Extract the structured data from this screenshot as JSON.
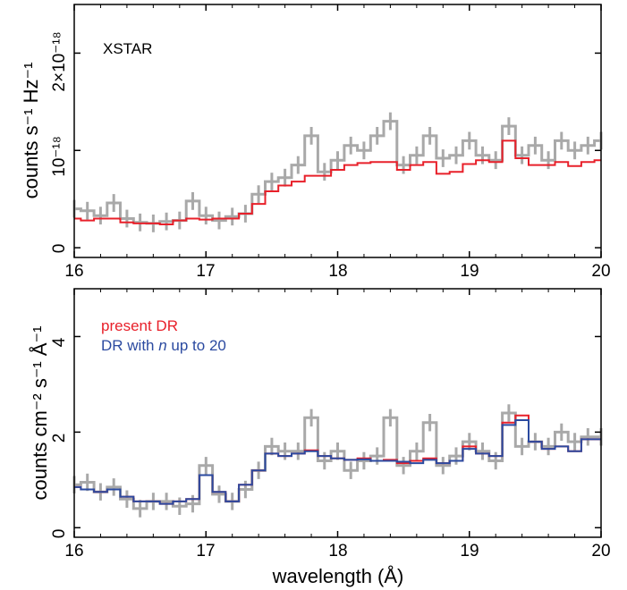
{
  "chart_data": [
    {
      "type": "line",
      "annotation": "XSTAR",
      "xlabel": "",
      "ylabel": "counts s⁻¹ Hz⁻¹",
      "xlim": [
        16,
        20
      ],
      "ylim": [
        -0.1,
        2.5
      ],
      "y_unit_multiplier": "1e-18",
      "x_ticks": [
        16,
        17,
        18,
        19,
        20
      ],
      "x_tick_labels": [
        "16",
        "17",
        "18",
        "19",
        "20"
      ],
      "y_ticks": [
        0,
        1,
        2
      ],
      "y_tick_labels": [
        "0",
        "10⁻¹⁸",
        "2×10⁻¹⁸"
      ],
      "series": [
        {
          "color": "#a9a9a9",
          "x": [
            16.0,
            16.1,
            16.2,
            16.3,
            16.4,
            16.5,
            16.6,
            16.7,
            16.8,
            16.9,
            17.0,
            17.1,
            17.2,
            17.3,
            17.4,
            17.5,
            17.6,
            17.7,
            17.8,
            17.9,
            18.0,
            18.1,
            18.2,
            18.3,
            18.4,
            18.5,
            18.6,
            18.7,
            18.8,
            18.9,
            19.0,
            19.1,
            19.2,
            19.3,
            19.4,
            19.5,
            19.6,
            19.7,
            19.8,
            19.9,
            20.0
          ],
          "y": [
            0.4,
            0.38,
            0.33,
            0.46,
            0.3,
            0.26,
            0.25,
            0.27,
            0.28,
            0.48,
            0.33,
            0.28,
            0.32,
            0.35,
            0.55,
            0.68,
            0.72,
            0.85,
            1.15,
            0.78,
            0.9,
            1.05,
            1.0,
            1.15,
            1.3,
            0.85,
            0.95,
            1.15,
            0.92,
            0.95,
            1.1,
            0.95,
            0.9,
            1.25,
            0.95,
            1.05,
            0.9,
            1.1,
            1.0,
            1.05,
            1.1
          ]
        },
        {
          "color": "#e8202a",
          "x": [
            16.0,
            16.1,
            16.2,
            16.3,
            16.4,
            16.5,
            16.6,
            16.7,
            16.8,
            16.9,
            17.0,
            17.1,
            17.2,
            17.3,
            17.4,
            17.5,
            17.6,
            17.7,
            17.8,
            17.9,
            18.0,
            18.1,
            18.2,
            18.3,
            18.4,
            18.5,
            18.6,
            18.7,
            18.8,
            18.9,
            19.0,
            19.1,
            19.2,
            19.3,
            19.4,
            19.5,
            19.6,
            19.7,
            19.8,
            19.9,
            20.0
          ],
          "y": [
            0.3,
            0.28,
            0.3,
            0.3,
            0.26,
            0.25,
            0.25,
            0.24,
            0.28,
            0.3,
            0.29,
            0.3,
            0.3,
            0.35,
            0.45,
            0.58,
            0.64,
            0.68,
            0.74,
            0.74,
            0.8,
            0.85,
            0.87,
            0.88,
            0.88,
            0.8,
            0.85,
            0.88,
            0.76,
            0.78,
            0.86,
            0.9,
            0.88,
            1.1,
            0.92,
            0.85,
            0.85,
            0.88,
            0.84,
            0.88,
            0.9
          ]
        }
      ]
    },
    {
      "type": "line",
      "xlabel": "wavelength (Å)",
      "ylabel": "counts cm⁻² s⁻¹ Å⁻¹",
      "xlim": [
        16,
        20
      ],
      "ylim": [
        -0.2,
        5.0
      ],
      "x_ticks": [
        16,
        17,
        18,
        19,
        20
      ],
      "x_tick_labels": [
        "16",
        "17",
        "18",
        "19",
        "20"
      ],
      "y_ticks": [
        0,
        2,
        4
      ],
      "y_tick_labels": [
        "0",
        "2",
        "4"
      ],
      "legend": {
        "placement": "top-left",
        "entries": [
          {
            "label": "present DR",
            "color": "#e8202a"
          },
          {
            "label_before": "DR with ",
            "label_italic": "n",
            "label_after": " up to 20",
            "color": "#2b4aa0"
          }
        ]
      },
      "series": [
        {
          "color": "#a9a9a9",
          "x": [
            16.0,
            16.1,
            16.2,
            16.3,
            16.4,
            16.5,
            16.6,
            16.7,
            16.8,
            16.9,
            17.0,
            17.1,
            17.2,
            17.3,
            17.4,
            17.5,
            17.6,
            17.7,
            17.8,
            17.9,
            18.0,
            18.1,
            18.2,
            18.3,
            18.4,
            18.5,
            18.6,
            18.7,
            18.8,
            18.9,
            19.0,
            19.1,
            19.2,
            19.3,
            19.4,
            19.5,
            19.6,
            19.7,
            19.8,
            19.9,
            20.0
          ],
          "y": [
            0.9,
            0.95,
            0.75,
            0.85,
            0.6,
            0.4,
            0.55,
            0.55,
            0.45,
            0.5,
            1.3,
            0.7,
            0.55,
            0.8,
            1.2,
            1.7,
            1.6,
            1.6,
            2.3,
            1.4,
            1.6,
            1.2,
            1.4,
            1.5,
            2.3,
            1.3,
            1.6,
            2.2,
            1.3,
            1.5,
            1.8,
            1.6,
            1.4,
            2.4,
            1.7,
            1.8,
            1.7,
            2.0,
            1.8,
            1.9,
            1.9
          ]
        },
        {
          "name": "present DR",
          "color": "#e8202a",
          "x": [
            16.0,
            16.1,
            16.2,
            16.3,
            16.4,
            16.5,
            16.6,
            16.7,
            16.8,
            16.9,
            17.0,
            17.1,
            17.2,
            17.3,
            17.4,
            17.5,
            17.6,
            17.7,
            17.8,
            17.9,
            18.0,
            18.1,
            18.2,
            18.3,
            18.4,
            18.5,
            18.6,
            18.7,
            18.8,
            18.9,
            19.0,
            19.1,
            19.2,
            19.3,
            19.4,
            19.5,
            19.6,
            19.7,
            19.8,
            19.9,
            20.0
          ],
          "y": [
            0.85,
            0.8,
            0.75,
            0.8,
            0.65,
            0.55,
            0.55,
            0.5,
            0.55,
            0.6,
            1.1,
            0.75,
            0.55,
            0.9,
            1.2,
            1.55,
            1.5,
            1.55,
            1.62,
            1.5,
            1.45,
            1.42,
            1.45,
            1.4,
            1.42,
            1.35,
            1.4,
            1.45,
            1.35,
            1.4,
            1.7,
            1.55,
            1.5,
            2.2,
            2.35,
            1.8,
            1.65,
            1.7,
            1.6,
            1.85,
            1.85
          ]
        },
        {
          "name": "DR with n up to 20",
          "color": "#2b4aa0",
          "x": [
            16.0,
            16.1,
            16.2,
            16.3,
            16.4,
            16.5,
            16.6,
            16.7,
            16.8,
            16.9,
            17.0,
            17.1,
            17.2,
            17.3,
            17.4,
            17.5,
            17.6,
            17.7,
            17.8,
            17.9,
            18.0,
            18.1,
            18.2,
            18.3,
            18.4,
            18.5,
            18.6,
            18.7,
            18.8,
            18.9,
            19.0,
            19.1,
            19.2,
            19.3,
            19.4,
            19.5,
            19.6,
            19.7,
            19.8,
            19.9,
            20.0
          ],
          "y": [
            0.85,
            0.8,
            0.75,
            0.8,
            0.65,
            0.55,
            0.55,
            0.5,
            0.55,
            0.6,
            1.1,
            0.75,
            0.55,
            0.9,
            1.2,
            1.55,
            1.5,
            1.55,
            1.6,
            1.5,
            1.45,
            1.42,
            1.43,
            1.4,
            1.4,
            1.38,
            1.35,
            1.42,
            1.35,
            1.4,
            1.65,
            1.55,
            1.5,
            2.15,
            2.25,
            1.8,
            1.65,
            1.7,
            1.6,
            1.85,
            1.85
          ]
        }
      ]
    }
  ]
}
